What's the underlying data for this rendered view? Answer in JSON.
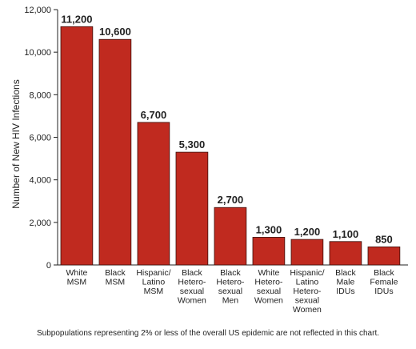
{
  "chart_data": {
    "type": "bar",
    "ylabel": "Number of New HIV Infections",
    "ylim": [
      0,
      12000
    ],
    "yticks": [
      "0",
      "2,000",
      "4,000",
      "6,000",
      "8,000",
      "10,000",
      "12,000"
    ],
    "grid": false,
    "bar_color": "#c02a1f",
    "categories": [
      [
        "White",
        "MSM"
      ],
      [
        "Black",
        "MSM"
      ],
      [
        "Hispanic/",
        "Latino",
        "MSM"
      ],
      [
        "Black",
        "Hetero-",
        "sexual",
        "Women"
      ],
      [
        "Black",
        "Hetero-",
        "sexual",
        "Men"
      ],
      [
        "White",
        "Hetero-",
        "sexual",
        "Women"
      ],
      [
        "Hispanic/",
        "Latino",
        "Hetero-",
        "sexual",
        "Women"
      ],
      [
        "Black",
        "Male",
        "IDUs"
      ],
      [
        "Black",
        "Female",
        "IDUs"
      ]
    ],
    "values": [
      11200,
      10600,
      6700,
      5300,
      2700,
      1300,
      1200,
      1100,
      850
    ],
    "value_labels": [
      "11,200",
      "10,600",
      "6,700",
      "5,300",
      "2,700",
      "1,300",
      "1,200",
      "1,100",
      "850"
    ],
    "footnote": "Subpopulations representing 2% or less of the overall US epidemic are not reflected in this chart."
  }
}
